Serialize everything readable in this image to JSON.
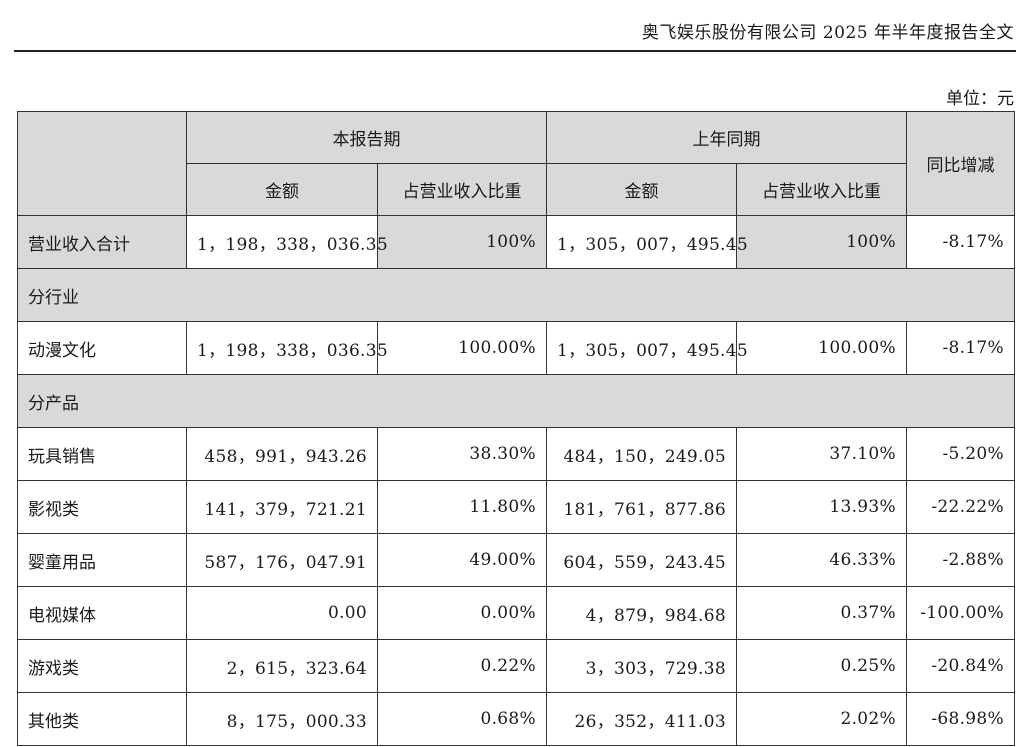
{
  "header": {
    "title": "奥飞娱乐股份有限公司 2025 年半年度报告全文"
  },
  "unit_label": "单位：元",
  "table": {
    "headers": {
      "current_period": "本报告期",
      "prior_period": "上年同期",
      "yoy_change": "同比增减",
      "amount": "金额",
      "ratio": "占营业收入比重"
    },
    "total": {
      "label": "营业收入合计",
      "cur_amount": "1，198，338，036.35",
      "cur_ratio": "100%",
      "prev_amount": "1，305，007，495.45",
      "prev_ratio": "100%",
      "yoy": "-8.17%"
    },
    "section_industry": "分行业",
    "industry_rows": [
      {
        "label": "动漫文化",
        "cur_amount": "1，198，338，036.35",
        "cur_ratio": "100.00%",
        "prev_amount": "1，305，007，495.45",
        "prev_ratio": "100.00%",
        "yoy": "-8.17%"
      }
    ],
    "section_product": "分产品",
    "product_rows": [
      {
        "label": "玩具销售",
        "cur_amount": "458，991，943.26",
        "cur_ratio": "38.30%",
        "prev_amount": "484，150，249.05",
        "prev_ratio": "37.10%",
        "yoy": "-5.20%"
      },
      {
        "label": "影视类",
        "cur_amount": "141，379，721.21",
        "cur_ratio": "11.80%",
        "prev_amount": "181，761，877.86",
        "prev_ratio": "13.93%",
        "yoy": "-22.22%"
      },
      {
        "label": "婴童用品",
        "cur_amount": "587，176，047.91",
        "cur_ratio": "49.00%",
        "prev_amount": "604，559，243.45",
        "prev_ratio": "46.33%",
        "yoy": "-2.88%"
      },
      {
        "label": "电视媒体",
        "cur_amount": "0.00",
        "cur_ratio": "0.00%",
        "prev_amount": "4，879，984.68",
        "prev_ratio": "0.37%",
        "yoy": "-100.00%"
      },
      {
        "label": "游戏类",
        "cur_amount": "2，615，323.64",
        "cur_ratio": "0.22%",
        "prev_amount": "3，303，729.38",
        "prev_ratio": "0.25%",
        "yoy": "-20.84%"
      },
      {
        "label": "其他类",
        "cur_amount": "8，175，000.33",
        "cur_ratio": "0.68%",
        "prev_amount": "26，352，411.03",
        "prev_ratio": "2.02%",
        "yoy": "-68.98%"
      }
    ]
  }
}
